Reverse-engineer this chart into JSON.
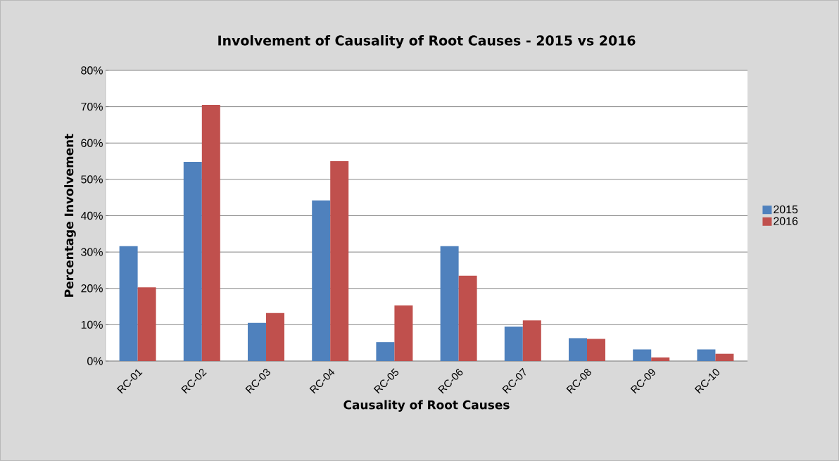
{
  "chart_data": {
    "type": "bar",
    "title": "Involvement of Causality of Root Causes - 2015 vs 2016",
    "xlabel": "Causality of Root Causes",
    "ylabel": "Percentage Involvement",
    "categories": [
      "RC-01",
      "RC-02",
      "RC-03",
      "RC-04",
      "RC-05",
      "RC-06",
      "RC-07",
      "RC-08",
      "RC-09",
      "RC-10"
    ],
    "series": [
      {
        "name": "2015",
        "color": "#4f81bd",
        "values": [
          31.6,
          54.8,
          10.5,
          44.2,
          5.2,
          31.6,
          9.5,
          6.3,
          3.2,
          3.2
        ]
      },
      {
        "name": "2016",
        "color": "#c0504d",
        "values": [
          20.3,
          70.5,
          13.2,
          55.0,
          15.3,
          23.5,
          11.2,
          6.1,
          1.0,
          2.0
        ]
      }
    ],
    "ylim": [
      0,
      80
    ],
    "yticks": [
      {
        "value": 0,
        "label": "0%"
      },
      {
        "value": 10,
        "label": "10%"
      },
      {
        "value": 20,
        "label": "20%"
      },
      {
        "value": 30,
        "label": "30%"
      },
      {
        "value": 40,
        "label": "40%"
      },
      {
        "value": 50,
        "label": "50%"
      },
      {
        "value": 60,
        "label": "60%"
      },
      {
        "value": 70,
        "label": "70%"
      },
      {
        "value": 80,
        "label": "80%"
      }
    ],
    "grid": "y",
    "legend": "right"
  }
}
